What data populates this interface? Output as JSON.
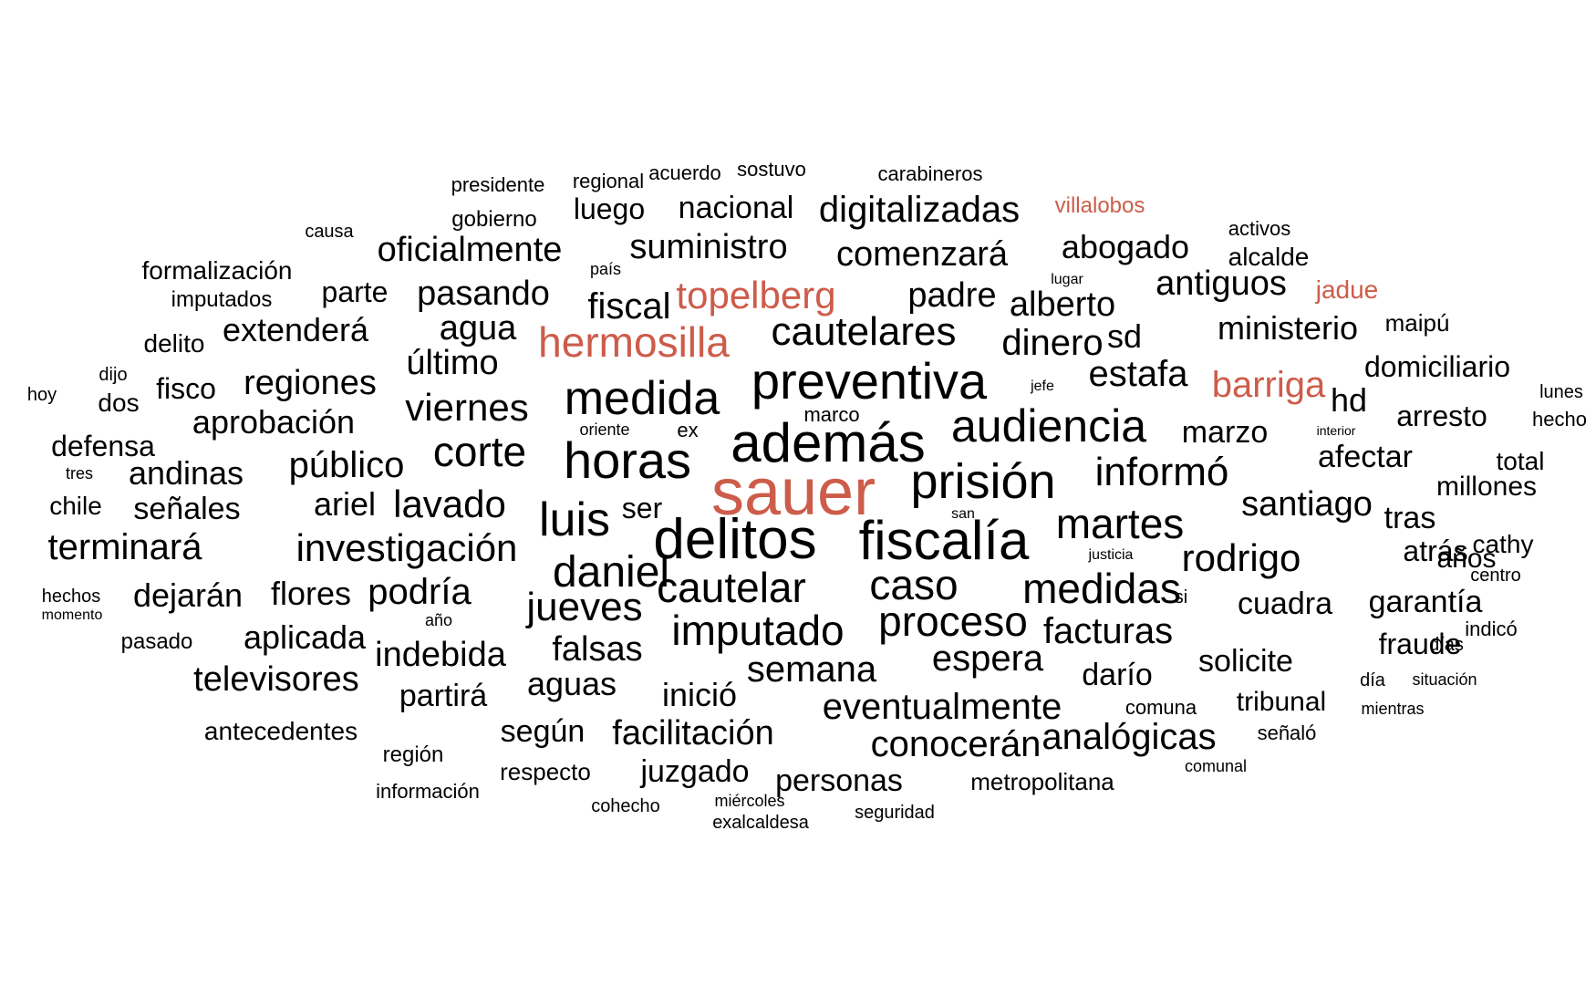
{
  "colors": {
    "default": "#000000",
    "highlight": "#cd5c4a"
  },
  "words": [
    {
      "text": "sauer",
      "highlight": true
    },
    {
      "text": "delitos",
      "highlight": false
    },
    {
      "text": "fiscalía",
      "highlight": false
    },
    {
      "text": "además",
      "highlight": false
    },
    {
      "text": "preventiva",
      "highlight": false
    },
    {
      "text": "prisión",
      "highlight": false
    },
    {
      "text": "horas",
      "highlight": false
    },
    {
      "text": "medida",
      "highlight": false
    },
    {
      "text": "audiencia",
      "highlight": false
    },
    {
      "text": "hermosilla",
      "highlight": true
    },
    {
      "text": "topelberg",
      "highlight": true
    },
    {
      "text": "barriga",
      "highlight": true
    },
    {
      "text": "jadue",
      "highlight": true
    },
    {
      "text": "villalobos",
      "highlight": true
    },
    {
      "text": "luis",
      "highlight": false
    },
    {
      "text": "daniel",
      "highlight": false
    },
    {
      "text": "corte",
      "highlight": false
    },
    {
      "text": "cautelar",
      "highlight": false
    },
    {
      "text": "caso",
      "highlight": false
    },
    {
      "text": "medidas",
      "highlight": false
    },
    {
      "text": "imputado",
      "highlight": false
    },
    {
      "text": "proceso",
      "highlight": false
    },
    {
      "text": "martes",
      "highlight": false
    },
    {
      "text": "informó",
      "highlight": false
    },
    {
      "text": "cautelares",
      "highlight": false
    },
    {
      "text": "jueves",
      "highlight": false
    },
    {
      "text": "rodrigo",
      "highlight": false
    },
    {
      "text": "investigación",
      "highlight": false
    },
    {
      "text": "viernes",
      "highlight": false
    },
    {
      "text": "lavado",
      "highlight": false
    },
    {
      "text": "estafa",
      "highlight": false
    },
    {
      "text": "dinero",
      "highlight": false
    },
    {
      "text": "comenzará",
      "highlight": false
    },
    {
      "text": "digitalizadas",
      "highlight": false
    },
    {
      "text": "suministro",
      "highlight": false
    },
    {
      "text": "oficialmente",
      "highlight": false
    },
    {
      "text": "eventualmente",
      "highlight": false
    },
    {
      "text": "semana",
      "highlight": false
    },
    {
      "text": "espera",
      "highlight": false
    },
    {
      "text": "facturas",
      "highlight": false
    },
    {
      "text": "conocerán",
      "highlight": false
    },
    {
      "text": "analógicas",
      "highlight": false
    },
    {
      "text": "facilitación",
      "highlight": false
    },
    {
      "text": "público",
      "highlight": false
    },
    {
      "text": "podría",
      "highlight": false
    },
    {
      "text": "terminará",
      "highlight": false
    },
    {
      "text": "televisores",
      "highlight": false
    },
    {
      "text": "santiago",
      "highlight": false
    },
    {
      "text": "padre",
      "highlight": false
    },
    {
      "text": "alberto",
      "highlight": false
    },
    {
      "text": "abogado",
      "highlight": false
    },
    {
      "text": "antiguos",
      "highlight": false
    },
    {
      "text": "ministerio",
      "highlight": false
    },
    {
      "text": "fiscal",
      "highlight": false
    },
    {
      "text": "agua",
      "highlight": false
    },
    {
      "text": "pasando",
      "highlight": false
    },
    {
      "text": "último",
      "highlight": false
    },
    {
      "text": "regiones",
      "highlight": false
    },
    {
      "text": "extenderá",
      "highlight": false
    },
    {
      "text": "aprobación",
      "highlight": false
    },
    {
      "text": "andinas",
      "highlight": false
    },
    {
      "text": "ariel",
      "highlight": false
    },
    {
      "text": "señales",
      "highlight": false
    },
    {
      "text": "dejarán",
      "highlight": false
    },
    {
      "text": "flores",
      "highlight": false
    },
    {
      "text": "aplicada",
      "highlight": false
    },
    {
      "text": "indebida",
      "highlight": false
    },
    {
      "text": "falsas",
      "highlight": false
    },
    {
      "text": "aguas",
      "highlight": false
    },
    {
      "text": "inició",
      "highlight": false
    },
    {
      "text": "partirá",
      "highlight": false
    },
    {
      "text": "según",
      "highlight": false
    },
    {
      "text": "juzgado",
      "highlight": false
    },
    {
      "text": "personas",
      "highlight": false
    },
    {
      "text": "darío",
      "highlight": false
    },
    {
      "text": "solicite",
      "highlight": false
    },
    {
      "text": "cuadra",
      "highlight": false
    },
    {
      "text": "garantía",
      "highlight": false
    },
    {
      "text": "fraude",
      "highlight": false
    },
    {
      "text": "tribunal",
      "highlight": false
    },
    {
      "text": "atrás",
      "highlight": false
    },
    {
      "text": "afectar",
      "highlight": false
    },
    {
      "text": "marzo",
      "highlight": false
    },
    {
      "text": "arresto",
      "highlight": false
    },
    {
      "text": "domiciliario",
      "highlight": false
    },
    {
      "text": "hd",
      "highlight": false
    },
    {
      "text": "sd",
      "highlight": false
    },
    {
      "text": "luego",
      "highlight": false
    },
    {
      "text": "nacional",
      "highlight": false
    },
    {
      "text": "parte",
      "highlight": false
    },
    {
      "text": "fisco",
      "highlight": false
    },
    {
      "text": "ser",
      "highlight": false
    },
    {
      "text": "defensa",
      "highlight": false
    },
    {
      "text": "formalización",
      "highlight": false
    },
    {
      "text": "millones",
      "highlight": false
    },
    {
      "text": "tras",
      "highlight": false
    },
    {
      "text": "años",
      "highlight": false
    },
    {
      "text": "cathy",
      "highlight": false
    },
    {
      "text": "total",
      "highlight": false
    },
    {
      "text": "alcalde",
      "highlight": false
    },
    {
      "text": "maipú",
      "highlight": false
    },
    {
      "text": "antecedentes",
      "highlight": false
    },
    {
      "text": "metropolitana",
      "highlight": false
    },
    {
      "text": "delito",
      "highlight": false
    },
    {
      "text": "dos",
      "highlight": false
    },
    {
      "text": "chile",
      "highlight": false
    },
    {
      "text": "imputados",
      "highlight": false
    },
    {
      "text": "gobierno",
      "highlight": false
    },
    {
      "text": "presidente",
      "highlight": false
    },
    {
      "text": "regional",
      "highlight": false
    },
    {
      "text": "acuerdo",
      "highlight": false
    },
    {
      "text": "sostuvo",
      "highlight": false
    },
    {
      "text": "carabineros",
      "highlight": false
    },
    {
      "text": "causa",
      "highlight": false
    },
    {
      "text": "país",
      "highlight": false
    },
    {
      "text": "activos",
      "highlight": false
    },
    {
      "text": "lugar",
      "highlight": false
    },
    {
      "text": "dijo",
      "highlight": false
    },
    {
      "text": "hoy",
      "highlight": false
    },
    {
      "text": "tres",
      "highlight": false
    },
    {
      "text": "hechos",
      "highlight": false
    },
    {
      "text": "momento",
      "highlight": false
    },
    {
      "text": "pasado",
      "highlight": false
    },
    {
      "text": "año",
      "highlight": false
    },
    {
      "text": "marco",
      "highlight": false
    },
    {
      "text": "oriente",
      "highlight": false
    },
    {
      "text": "ex",
      "highlight": false
    },
    {
      "text": "jefe",
      "highlight": false
    },
    {
      "text": "san",
      "highlight": false
    },
    {
      "text": "justicia",
      "highlight": false
    },
    {
      "text": "si",
      "highlight": false
    },
    {
      "text": "comuna",
      "highlight": false
    },
    {
      "text": "comunal",
      "highlight": false
    },
    {
      "text": "señaló",
      "highlight": false
    },
    {
      "text": "mientras",
      "highlight": false
    },
    {
      "text": "día",
      "highlight": false
    },
    {
      "text": "situación",
      "highlight": false
    },
    {
      "text": "días",
      "highlight": false
    },
    {
      "text": "indicó",
      "highlight": false
    },
    {
      "text": "centro",
      "highlight": false
    },
    {
      "text": "lunes",
      "highlight": false
    },
    {
      "text": "hecho",
      "highlight": false
    },
    {
      "text": "interior",
      "highlight": false
    },
    {
      "text": "región",
      "highlight": false
    },
    {
      "text": "información",
      "highlight": false
    },
    {
      "text": "respecto",
      "highlight": false
    },
    {
      "text": "cohecho",
      "highlight": false
    },
    {
      "text": "miércoles",
      "highlight": false
    },
    {
      "text": "exalcaldesa",
      "highlight": false
    },
    {
      "text": "seguridad",
      "highlight": false
    }
  ]
}
